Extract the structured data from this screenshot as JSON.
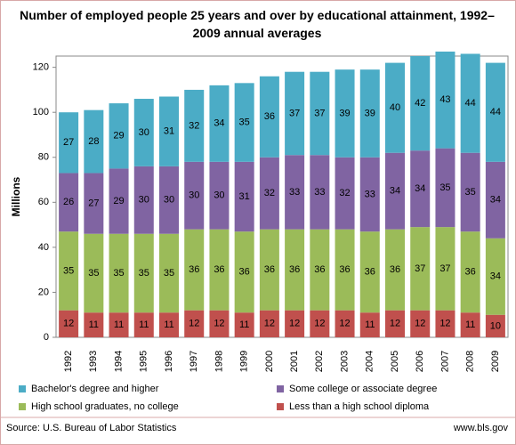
{
  "chart_data": {
    "type": "stacked_bar",
    "title": "Number of employed people 25 years and over by educational attainment, 1992–2009 annual averages",
    "y_label": "Millions",
    "categories": [
      "1992",
      "1993",
      "1994",
      "1995",
      "1996",
      "1997",
      "1998",
      "1999",
      "2000",
      "2001",
      "2002",
      "2003",
      "2004",
      "2005",
      "2006",
      "2007",
      "2008",
      "2009"
    ],
    "series": [
      {
        "name": "Less than a high school diploma",
        "color": "#c0504d",
        "values": [
          12,
          11,
          11,
          11,
          11,
          12,
          12,
          11,
          12,
          12,
          12,
          12,
          11,
          12,
          12,
          12,
          11,
          10
        ]
      },
      {
        "name": "High school graduates, no college",
        "color": "#9bbb59",
        "values": [
          35,
          35,
          35,
          35,
          35,
          36,
          36,
          36,
          36,
          36,
          36,
          36,
          36,
          36,
          37,
          37,
          36,
          34
        ]
      },
      {
        "name": "Some college or associate  degree",
        "color": "#8064a2",
        "values": [
          26,
          27,
          29,
          30,
          30,
          30,
          30,
          31,
          32,
          33,
          33,
          32,
          33,
          34,
          34,
          35,
          35,
          34
        ]
      },
      {
        "name": "Bachelor's degree and higher",
        "color": "#4bacc6",
        "values": [
          27,
          28,
          29,
          30,
          31,
          32,
          34,
          35,
          36,
          37,
          37,
          39,
          39,
          40,
          42,
          43,
          44,
          44
        ]
      }
    ],
    "ylim": [
      0,
      125
    ],
    "yticks": [
      0,
      20,
      40,
      60,
      80,
      100,
      120
    ],
    "source": "Source: U.S. Bureau of Labor Statistics",
    "website": "www.bls.gov"
  }
}
